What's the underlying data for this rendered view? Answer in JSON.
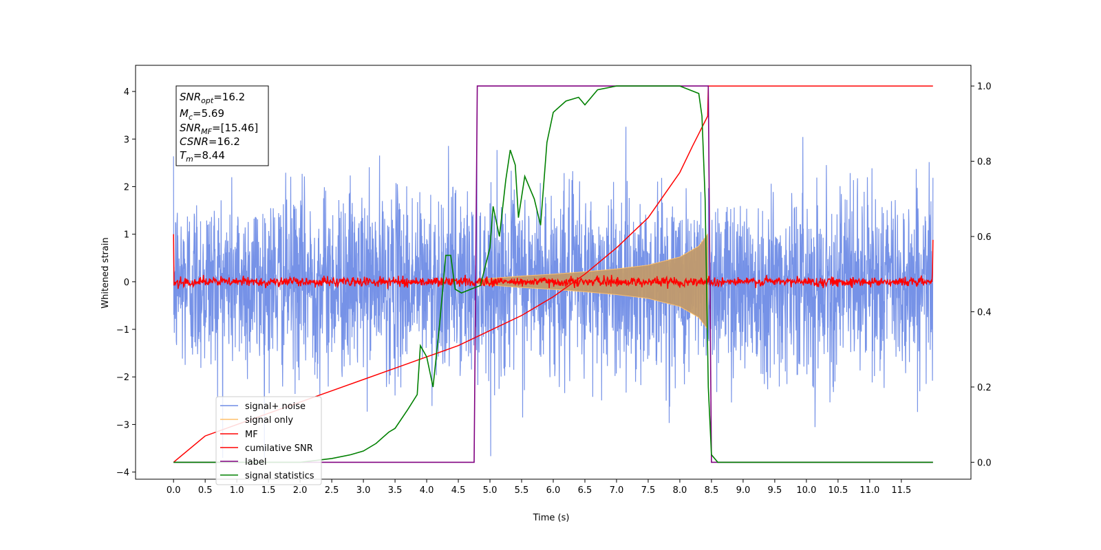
{
  "chart_data": {
    "type": "line",
    "xlabel": "Time (s)",
    "ylabel": "Whitened strain",
    "xlim": [
      -0.6,
      12.6
    ],
    "ylim": [
      -4.15,
      4.55
    ],
    "y2lim": [
      -0.045,
      1.055
    ],
    "x_ticks": [
      "0.0",
      "0.5",
      "1.0",
      "1.5",
      "2.0",
      "2.5",
      "3.0",
      "3.5",
      "4.0",
      "4.5",
      "5.0",
      "5.5",
      "6.0",
      "6.5",
      "7.0",
      "7.5",
      "8.0",
      "8.5",
      "9.0",
      "9.5",
      "10.0",
      "10.5",
      "11.0",
      "11.5"
    ],
    "y_ticks": [
      "−4",
      "−3",
      "−2",
      "−1",
      "0",
      "1",
      "2",
      "3",
      "4"
    ],
    "y2_ticks": [
      "0.0",
      "0.2",
      "0.4",
      "0.6",
      "0.8",
      "1.0"
    ],
    "grid": false,
    "legend_position": "lower-left",
    "info_box": {
      "line1_base": "SNR",
      "line1_sub": "opt",
      "line1_val": "=16.2",
      "line2_base": "M",
      "line2_sub": "c",
      "line2_val": "=5.69",
      "line3_base": "SNR",
      "line3_sub": "MF",
      "line3_val": "=[15.46]",
      "line4_base": "CSNR",
      "line4_val": "=16.2",
      "line5_base": "T",
      "line5_sub": "m",
      "line5_val": "=8.44"
    },
    "series": [
      {
        "name": "signal+ noise",
        "color": "#6f8ce6",
        "axis": "left",
        "description": "whitened noisy data, amplitude ~±1 std with peaks to ~±3.7",
        "x_range": [
          0.0,
          12.0
        ]
      },
      {
        "name": "signal only",
        "color": "#ffc06a",
        "axis": "left",
        "description": "chirp envelope growing from ~0.05 at 4.8 s to ~±1.0 at 8.44 s",
        "envelope_x": [
          4.8,
          5.5,
          6.0,
          6.5,
          7.0,
          7.5,
          8.0,
          8.3,
          8.44
        ],
        "envelope_y": [
          0.05,
          0.12,
          0.16,
          0.21,
          0.27,
          0.35,
          0.52,
          0.75,
          1.0
        ]
      },
      {
        "name": "MF",
        "color": "#ff0000",
        "axis": "left",
        "description": "matched filter output around 0 with spikes to ~1.0 at edges",
        "x_range": [
          0.0,
          12.0
        ]
      },
      {
        "name": "cumilative SNR",
        "color": "#ff0000",
        "axis": "right",
        "x": [
          0.0,
          0.5,
          1.0,
          1.5,
          2.0,
          2.5,
          3.0,
          3.5,
          4.0,
          4.5,
          5.0,
          5.5,
          6.0,
          6.5,
          7.0,
          7.5,
          8.0,
          8.2,
          8.44,
          8.45,
          12.0
        ],
        "y": [
          0.0,
          0.07,
          0.1,
          0.13,
          0.16,
          0.19,
          0.22,
          0.25,
          0.28,
          0.31,
          0.35,
          0.39,
          0.44,
          0.5,
          0.57,
          0.65,
          0.77,
          0.84,
          0.92,
          1.0,
          1.0
        ]
      },
      {
        "name": "label",
        "color": "#800080",
        "axis": "right",
        "x": [
          0.0,
          4.75,
          4.8,
          8.45,
          8.5,
          12.0
        ],
        "y": [
          0.0,
          0.0,
          1.0,
          1.0,
          0.0,
          0.0
        ]
      },
      {
        "name": "signal statistics",
        "color": "#008000",
        "axis": "right",
        "x": [
          0.0,
          1.0,
          2.0,
          2.5,
          2.8,
          3.0,
          3.2,
          3.4,
          3.5,
          3.7,
          3.85,
          3.9,
          4.0,
          4.1,
          4.2,
          4.3,
          4.38,
          4.45,
          4.55,
          4.7,
          4.85,
          5.0,
          5.05,
          5.15,
          5.25,
          5.32,
          5.4,
          5.45,
          5.55,
          5.7,
          5.8,
          5.9,
          6.0,
          6.2,
          6.4,
          6.5,
          6.7,
          7.0,
          7.5,
          8.0,
          8.3,
          8.35,
          8.4,
          8.45,
          8.5,
          8.6,
          9.0,
          12.0
        ],
        "y": [
          0.0,
          0.0,
          0.0,
          0.01,
          0.02,
          0.03,
          0.05,
          0.08,
          0.09,
          0.14,
          0.18,
          0.31,
          0.28,
          0.2,
          0.36,
          0.55,
          0.55,
          0.46,
          0.45,
          0.46,
          0.47,
          0.57,
          0.68,
          0.6,
          0.75,
          0.83,
          0.79,
          0.65,
          0.76,
          0.7,
          0.63,
          0.85,
          0.93,
          0.96,
          0.97,
          0.95,
          0.99,
          1.0,
          1.0,
          1.0,
          0.98,
          0.92,
          0.7,
          0.2,
          0.02,
          0.0,
          0.0,
          0.0
        ]
      }
    ]
  }
}
